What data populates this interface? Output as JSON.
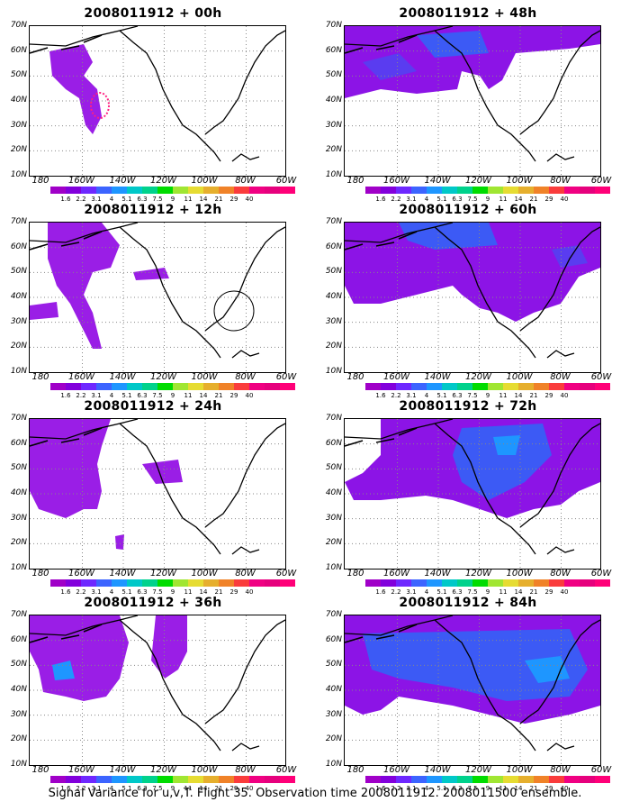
{
  "panels": [
    {
      "title": "2008011912 + 00h"
    },
    {
      "title": "2008011912 + 48h"
    },
    {
      "title": "2008011912 + 12h"
    },
    {
      "title": "2008011912 + 60h"
    },
    {
      "title": "2008011912 + 24h"
    },
    {
      "title": "2008011912 + 72h"
    },
    {
      "title": "2008011912 + 36h"
    },
    {
      "title": "2008011912 + 84h"
    }
  ],
  "axes": {
    "lat_labels": [
      "70N",
      "60N",
      "50N",
      "40N",
      "30N",
      "20N",
      "10N"
    ],
    "lon_labels": [
      "180",
      "160W",
      "140W",
      "120W",
      "100W",
      "80W",
      "60W"
    ]
  },
  "colorbar": {
    "labels": [
      "1.6",
      "2.2",
      "3.1",
      "4",
      "5.1",
      "6.3",
      "7.5",
      "9",
      "11",
      "14",
      "21",
      "29",
      "40"
    ],
    "colors": [
      "#a000c8",
      "#8200dc",
      "#6e28ff",
      "#3c64ff",
      "#1e96ff",
      "#00c8c8",
      "#00d28c",
      "#00dc00",
      "#a0e632",
      "#e6dc32",
      "#e6af2d",
      "#f08228",
      "#fa3c3c",
      "#f00082",
      "#e6007d",
      "#ff0078"
    ]
  },
  "caption": "Signal Variance for u,v,T. Flight 35. Observation time 2008011912. 2008011500 ensemble."
}
